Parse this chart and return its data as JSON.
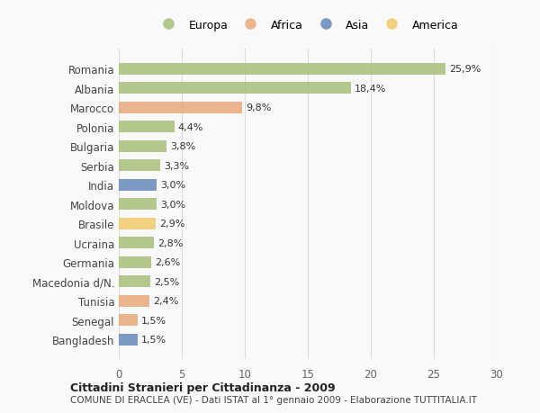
{
  "countries": [
    "Romania",
    "Albania",
    "Marocco",
    "Polonia",
    "Bulgaria",
    "Serbia",
    "India",
    "Moldova",
    "Brasile",
    "Ucraina",
    "Germania",
    "Macedonia d/N.",
    "Tunisia",
    "Senegal",
    "Bangladesh"
  ],
  "values": [
    25.9,
    18.4,
    9.8,
    4.4,
    3.8,
    3.3,
    3.0,
    3.0,
    2.9,
    2.8,
    2.6,
    2.5,
    2.4,
    1.5,
    1.5
  ],
  "labels": [
    "25,9%",
    "18,4%",
    "9,8%",
    "4,4%",
    "3,8%",
    "3,3%",
    "3,0%",
    "3,0%",
    "2,9%",
    "2,8%",
    "2,6%",
    "2,5%",
    "2,4%",
    "1,5%",
    "1,5%"
  ],
  "continents": [
    "Europa",
    "Europa",
    "Africa",
    "Europa",
    "Europa",
    "Europa",
    "Asia",
    "Europa",
    "America",
    "Europa",
    "Europa",
    "Europa",
    "Africa",
    "Africa",
    "Asia"
  ],
  "colors": {
    "Europa": "#a8c07a",
    "Africa": "#e8a87c",
    "Asia": "#6688bb",
    "America": "#f0c96a"
  },
  "xlim": [
    0,
    30
  ],
  "xticks": [
    0,
    5,
    10,
    15,
    20,
    25,
    30
  ],
  "title": "Cittadini Stranieri per Cittadinanza - 2009",
  "subtitle": "COMUNE DI ERACLEA (VE) - Dati ISTAT al 1° gennaio 2009 - Elaborazione TUTTITALIA.IT",
  "background_color": "#f9f9f9",
  "grid_color": "#dddddd",
  "legend_items": [
    "Europa",
    "Africa",
    "Asia",
    "America"
  ]
}
